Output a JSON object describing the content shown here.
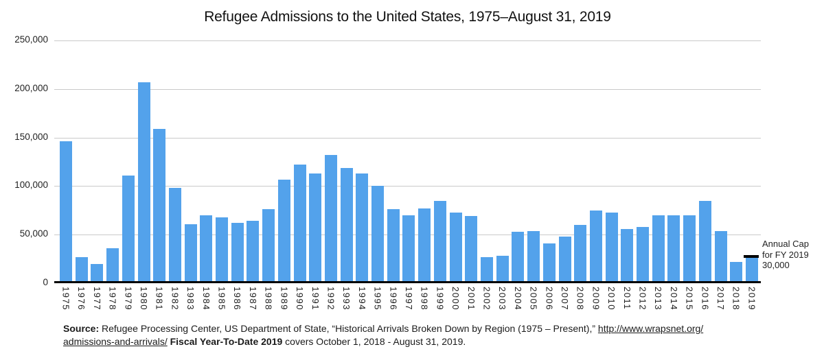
{
  "chart_data": {
    "type": "bar",
    "title": "Refugee Admissions to the United States, 1975–August 31, 2019",
    "categories": [
      "1975",
      "1976",
      "1977",
      "1978",
      "1979",
      "1980",
      "1981",
      "1982",
      "1983",
      "1984",
      "1985",
      "1986",
      "1987",
      "1988",
      "1989",
      "1990",
      "1991",
      "1992",
      "1993",
      "1994",
      "1995",
      "1996",
      "1997",
      "1998",
      "1999",
      "2000",
      "2001",
      "2002",
      "2003",
      "2004",
      "2005",
      "2006",
      "2007",
      "2008",
      "2009",
      "2010",
      "2011",
      "2012",
      "2013",
      "2014",
      "2015",
      "2016",
      "2017",
      "2018",
      "2019"
    ],
    "values": [
      146000,
      27000,
      20000,
      36000,
      111000,
      207000,
      159000,
      98000,
      61000,
      70000,
      68000,
      62000,
      64000,
      76000,
      107000,
      122000,
      113000,
      132000,
      119000,
      113000,
      100000,
      76000,
      70000,
      77000,
      85000,
      73000,
      69000,
      27000,
      28000,
      53000,
      54000,
      41000,
      48000,
      60000,
      75000,
      73000,
      56000,
      58000,
      70000,
      70000,
      70000,
      85000,
      54000,
      22000,
      27000
    ],
    "xlabel": "",
    "ylabel": "",
    "ylim": [
      0,
      250000
    ],
    "ytick_values": [
      0,
      50000,
      100000,
      150000,
      200000,
      250000
    ],
    "ytick_labels": [
      "0",
      "50,000",
      "100,000",
      "150,000",
      "200,000",
      "250,000"
    ],
    "grid": true,
    "legend_position": "none",
    "bar_color": "#53a2eb",
    "gridline_color": "#c9c9c9",
    "axis_color": "#000000",
    "annotation": {
      "lines": [
        "Annual Cap",
        "for FY 2019",
        "30,000"
      ],
      "cap_value": 30000,
      "cap_category": "2019",
      "cap_color": "#000000"
    }
  },
  "source": {
    "line1": [
      {
        "text": "Source:",
        "style": "bold"
      },
      {
        "text": " Refugee Processing Center, US Department of State, “Historical Arrivals Broken Down by Region (1975 – Present),” ",
        "style": "normal"
      },
      {
        "text": "http://www.wrapsnet.org/",
        "style": "link"
      }
    ],
    "line2": [
      {
        "text": "admissions-and-arrivals/",
        "style": "link"
      },
      {
        "text": " ",
        "style": "normal"
      },
      {
        "text": "Fiscal Year-To-Date 2019",
        "style": "bold"
      },
      {
        "text": " covers October 1, 2018 - August 31, 2019.",
        "style": "normal"
      }
    ]
  }
}
